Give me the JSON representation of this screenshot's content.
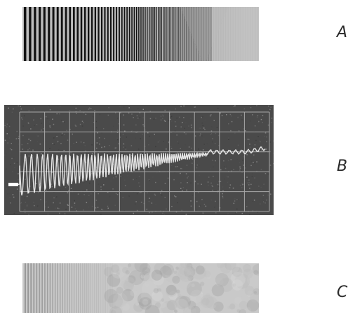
{
  "labels": {
    "a": "A",
    "b": "B",
    "c": "C"
  },
  "colors": {
    "background": "#ffffff",
    "grating_dark": "#111111",
    "scope_screen": "#4a4a4a",
    "scope_grid": "#a8a8a8",
    "scope_trace": "#ffffff"
  }
}
